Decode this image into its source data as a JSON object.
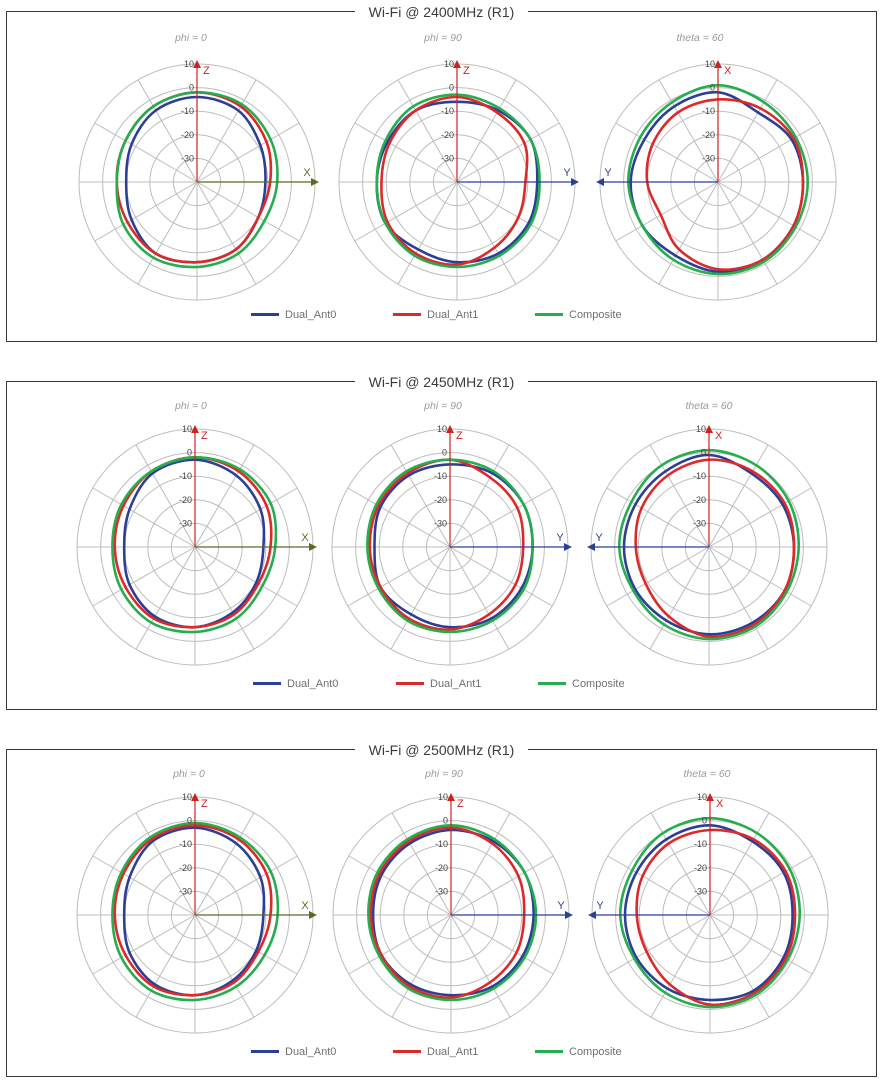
{
  "colors": {
    "dual_ant0": "#2c3f96",
    "dual_ant1": "#dc2a2a",
    "composite": "#26ad4e",
    "grid": "#bcbcbc",
    "vertical_axis": "#cc2222",
    "x_axis": "#5a6b1e",
    "y_axis": "#2c3f96"
  },
  "legend": {
    "ant0": "Dual_Ant0",
    "ant1": "Dual_Ant1",
    "composite": "Composite"
  },
  "panels": [
    {
      "title": "Wi-Fi @ 2400MHz (R1)",
      "plots": [
        {
          "subtitle": "phi = 0",
          "axis_up": "Z",
          "axis_side": "X"
        },
        {
          "subtitle": "phi = 90",
          "axis_up": "Z",
          "axis_side": "Y"
        },
        {
          "subtitle": "theta = 60",
          "axis_up": "X",
          "axis_side": "Y"
        }
      ]
    },
    {
      "title": "Wi-Fi @ 2450MHz (R1)",
      "plots": [
        {
          "subtitle": "phi = 0",
          "axis_up": "Z",
          "axis_side": "X"
        },
        {
          "subtitle": "phi = 90",
          "axis_up": "Z",
          "axis_side": "Y"
        },
        {
          "subtitle": "theta = 60",
          "axis_up": "X",
          "axis_side": "Y"
        }
      ]
    },
    {
      "title": "Wi-Fi @ 2500MHz (R1)",
      "plots": [
        {
          "subtitle": "phi = 0",
          "axis_up": "Z",
          "axis_side": "X"
        },
        {
          "subtitle": "phi = 90",
          "axis_up": "Z",
          "axis_side": "Y"
        },
        {
          "subtitle": "theta = 60",
          "axis_up": "X",
          "axis_side": "Y"
        }
      ]
    }
  ],
  "chart_data": {
    "type": "polar-line",
    "radial_axis": {
      "min": -40,
      "max": 10,
      "ticks": [
        10,
        0,
        -10,
        -20,
        -30
      ]
    },
    "angle_step_deg": 30,
    "angle_convention": "degrees clockwise from top",
    "series_names": [
      "Dual_Ant0",
      "Dual_Ant1",
      "Composite"
    ],
    "charts": [
      {
        "title": "Wi-Fi @ 2400MHz (R1)",
        "subtitle": "phi = 0",
        "series": [
          {
            "name": "Dual_Ant0",
            "angles_deg": [
              0,
              30,
              60,
              90,
              120,
              150,
              180,
              210,
              240,
              270,
              300,
              330
            ],
            "gain_db": [
              -4,
              -5,
              -9,
              -11,
              -10,
              -7,
              -6,
              -5,
              -8,
              -10,
              -8,
              -5
            ]
          },
          {
            "name": "Dual_Ant1",
            "angles_deg": [
              0,
              30,
              60,
              90,
              120,
              150,
              180,
              210,
              240,
              270,
              300,
              330
            ],
            "gain_db": [
              -2,
              -3,
              -6,
              -9,
              -10,
              -7,
              -6,
              -5,
              -6,
              -6,
              -5,
              -3
            ]
          },
          {
            "name": "Composite",
            "angles_deg": [
              0,
              30,
              60,
              90,
              120,
              150,
              180,
              210,
              240,
              270,
              300,
              330
            ],
            "gain_db": [
              -2,
              -2,
              -4,
              -6,
              -7,
              -5,
              -4,
              -3,
              -4,
              -6,
              -5,
              -3
            ]
          }
        ]
      },
      {
        "title": "Wi-Fi @ 2400MHz (R1)",
        "subtitle": "phi = 90",
        "series": [
          {
            "name": "Dual_Ant0",
            "angles_deg": [
              0,
              30,
              60,
              90,
              120,
              150,
              180,
              210,
              240,
              270,
              300,
              330
            ],
            "gain_db": [
              -6,
              -5,
              -4,
              -6,
              -5,
              -5,
              -6,
              -7,
              -5,
              -6,
              -6,
              -5
            ]
          },
          {
            "name": "Dual_Ant1",
            "angles_deg": [
              0,
              30,
              60,
              90,
              120,
              150,
              180,
              210,
              240,
              270,
              300,
              330
            ],
            "gain_db": [
              -4,
              -6,
              -7,
              -11,
              -10,
              -8,
              -5,
              -5,
              -6,
              -8,
              -7,
              -5
            ]
          },
          {
            "name": "Composite",
            "angles_deg": [
              0,
              30,
              60,
              90,
              120,
              150,
              180,
              210,
              240,
              270,
              300,
              330
            ],
            "gain_db": [
              -3,
              -4,
              -4,
              -5,
              -4,
              -4,
              -4,
              -4,
              -5,
              -6,
              -5,
              -3
            ]
          }
        ]
      },
      {
        "title": "Wi-Fi @ 2400MHz (R1)",
        "subtitle": "theta = 60",
        "series": [
          {
            "name": "Dual_Ant0",
            "angles_deg": [
              0,
              30,
              60,
              90,
              120,
              150,
              180,
              210,
              240,
              270,
              300,
              330
            ],
            "gain_db": [
              -2,
              -6,
              -4,
              -4,
              -3,
              -2,
              -2,
              -4,
              -3,
              -3,
              -4,
              -3
            ]
          },
          {
            "name": "Dual_Ant1",
            "angles_deg": [
              0,
              30,
              60,
              90,
              120,
              150,
              180,
              210,
              240,
              270,
              300,
              330
            ],
            "gain_db": [
              -5,
              -4,
              -3,
              -4,
              -3,
              -2,
              -3,
              -7,
              -12,
              -10,
              -8,
              -6
            ]
          },
          {
            "name": "Composite",
            "angles_deg": [
              0,
              30,
              60,
              90,
              120,
              150,
              180,
              210,
              240,
              270,
              300,
              330
            ],
            "gain_db": [
              1,
              -1,
              -2,
              -2,
              -2,
              -1,
              -1,
              -2,
              -3,
              -2,
              -2,
              -1
            ]
          }
        ]
      },
      {
        "title": "Wi-Fi @ 2450MHz (R1)",
        "subtitle": "phi = 0",
        "series": [
          {
            "name": "Dual_Ant0",
            "angles_deg": [
              0,
              30,
              60,
              90,
              120,
              150,
              180,
              210,
              240,
              270,
              300,
              330
            ],
            "gain_db": [
              -3,
              -5,
              -8,
              -11,
              -10,
              -8,
              -6,
              -6,
              -8,
              -10,
              -8,
              -4
            ]
          },
          {
            "name": "Dual_Ant1",
            "angles_deg": [
              0,
              30,
              60,
              90,
              120,
              150,
              180,
              210,
              240,
              270,
              300,
              330
            ],
            "gain_db": [
              -2,
              -3,
              -5,
              -8,
              -9,
              -7,
              -6,
              -5,
              -6,
              -6,
              -5,
              -3
            ]
          },
          {
            "name": "Composite",
            "angles_deg": [
              0,
              30,
              60,
              90,
              120,
              150,
              180,
              210,
              240,
              270,
              300,
              330
            ],
            "gain_db": [
              -2,
              -2,
              -3,
              -6,
              -7,
              -5,
              -4,
              -3,
              -4,
              -5,
              -4,
              -3
            ]
          }
        ]
      },
      {
        "title": "Wi-Fi @ 2450MHz (R1)",
        "subtitle": "phi = 90",
        "series": [
          {
            "name": "Dual_Ant0",
            "angles_deg": [
              0,
              30,
              60,
              90,
              120,
              150,
              180,
              210,
              240,
              270,
              300,
              330
            ],
            "gain_db": [
              -5,
              -4,
              -4,
              -5,
              -5,
              -5,
              -6,
              -7,
              -6,
              -8,
              -6,
              -5
            ]
          },
          {
            "name": "Dual_Ant1",
            "angles_deg": [
              0,
              30,
              60,
              90,
              120,
              150,
              180,
              210,
              240,
              270,
              300,
              330
            ],
            "gain_db": [
              -3,
              -6,
              -7,
              -9,
              -8,
              -7,
              -5,
              -5,
              -6,
              -6,
              -5,
              -4
            ]
          },
          {
            "name": "Composite",
            "angles_deg": [
              0,
              30,
              60,
              90,
              120,
              150,
              180,
              210,
              240,
              270,
              300,
              330
            ],
            "gain_db": [
              -3,
              -3,
              -4,
              -5,
              -4,
              -4,
              -4,
              -4,
              -5,
              -5,
              -4,
              -3
            ]
          }
        ]
      },
      {
        "title": "Wi-Fi @ 2450MHz (R1)",
        "subtitle": "theta = 60",
        "series": [
          {
            "name": "Dual_Ant0",
            "angles_deg": [
              0,
              30,
              60,
              90,
              120,
              150,
              180,
              210,
              240,
              270,
              300,
              330
            ],
            "gain_db": [
              -1,
              -4,
              -4,
              -4,
              -3,
              -3,
              -3,
              -4,
              -4,
              -4,
              -4,
              -3
            ]
          },
          {
            "name": "Dual_Ant1",
            "angles_deg": [
              0,
              30,
              60,
              90,
              120,
              150,
              180,
              210,
              240,
              270,
              300,
              330
            ],
            "gain_db": [
              -3,
              -3,
              -3,
              -4,
              -3,
              -2,
              -2,
              -6,
              -9,
              -9,
              -7,
              -5
            ]
          },
          {
            "name": "Composite",
            "angles_deg": [
              0,
              30,
              60,
              90,
              120,
              150,
              180,
              210,
              240,
              270,
              300,
              330
            ],
            "gain_db": [
              1,
              0,
              -1,
              -2,
              -2,
              -1,
              -1,
              -2,
              -3,
              -2,
              -2,
              0
            ]
          }
        ]
      },
      {
        "title": "Wi-Fi @ 2500MHz (R1)",
        "subtitle": "phi = 0",
        "series": [
          {
            "name": "Dual_Ant0",
            "angles_deg": [
              0,
              30,
              60,
              90,
              120,
              150,
              180,
              210,
              240,
              270,
              300,
              330
            ],
            "gain_db": [
              -3,
              -5,
              -8,
              -11,
              -10,
              -8,
              -6,
              -6,
              -8,
              -10,
              -8,
              -4
            ]
          },
          {
            "name": "Dual_Ant1",
            "angles_deg": [
              0,
              30,
              60,
              90,
              120,
              150,
              180,
              210,
              240,
              270,
              300,
              330
            ],
            "gain_db": [
              -2,
              -3,
              -5,
              -8,
              -9,
              -7,
              -6,
              -5,
              -6,
              -6,
              -5,
              -3
            ]
          },
          {
            "name": "Composite",
            "angles_deg": [
              0,
              30,
              60,
              90,
              120,
              150,
              180,
              210,
              240,
              270,
              300,
              330
            ],
            "gain_db": [
              -1,
              -2,
              -3,
              -5,
              -6,
              -5,
              -4,
              -3,
              -4,
              -5,
              -4,
              -2
            ]
          }
        ]
      },
      {
        "title": "Wi-Fi @ 2500MHz (R1)",
        "subtitle": "phi = 90",
        "series": [
          {
            "name": "Dual_Ant0",
            "angles_deg": [
              0,
              30,
              60,
              90,
              120,
              150,
              180,
              210,
              240,
              270,
              300,
              330
            ],
            "gain_db": [
              -4,
              -4,
              -4,
              -5,
              -5,
              -5,
              -6,
              -6,
              -6,
              -7,
              -6,
              -5
            ]
          },
          {
            "name": "Dual_Ant1",
            "angles_deg": [
              0,
              30,
              60,
              90,
              120,
              150,
              180,
              210,
              240,
              270,
              300,
              330
            ],
            "gain_db": [
              -3,
              -5,
              -7,
              -9,
              -8,
              -7,
              -5,
              -5,
              -6,
              -6,
              -5,
              -4
            ]
          },
          {
            "name": "Composite",
            "angles_deg": [
              0,
              30,
              60,
              90,
              120,
              150,
              180,
              210,
              240,
              270,
              300,
              330
            ],
            "gain_db": [
              -2,
              -3,
              -4,
              -4,
              -4,
              -4,
              -4,
              -4,
              -5,
              -5,
              -4,
              -3
            ]
          }
        ]
      },
      {
        "title": "Wi-Fi @ 2500MHz (R1)",
        "subtitle": "theta = 60",
        "series": [
          {
            "name": "Dual_Ant0",
            "angles_deg": [
              0,
              30,
              60,
              90,
              120,
              150,
              180,
              210,
              240,
              270,
              300,
              330
            ],
            "gain_db": [
              -2,
              -4,
              -4,
              -5,
              -4,
              -3,
              -4,
              -4,
              -4,
              -4,
              -4,
              -3
            ]
          },
          {
            "name": "Dual_Ant1",
            "angles_deg": [
              0,
              30,
              60,
              90,
              120,
              150,
              180,
              210,
              240,
              270,
              300,
              330
            ],
            "gain_db": [
              -4,
              -3,
              -3,
              -4,
              -3,
              -2,
              -2,
              -6,
              -9,
              -9,
              -7,
              -5
            ]
          },
          {
            "name": "Composite",
            "angles_deg": [
              0,
              30,
              60,
              90,
              120,
              150,
              180,
              210,
              240,
              270,
              300,
              330
            ],
            "gain_db": [
              1,
              0,
              -1,
              -2,
              -2,
              -1,
              -1,
              -2,
              -3,
              -2,
              -2,
              0
            ]
          }
        ]
      }
    ]
  }
}
